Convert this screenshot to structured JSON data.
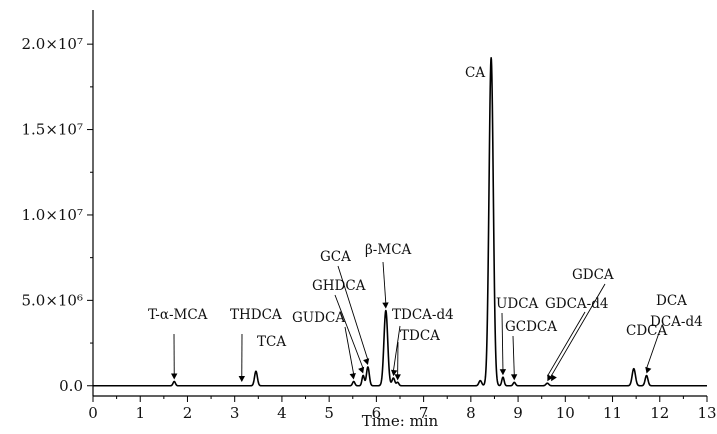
{
  "chart_data": {
    "type": "line",
    "title": "",
    "xlabel": "Time: min",
    "ylabel": "",
    "xlim": [
      0,
      13
    ],
    "ylim": [
      -0.6,
      22
    ],
    "x_ticks": [
      0,
      1,
      2,
      3,
      4,
      5,
      6,
      7,
      8,
      9,
      10,
      11,
      12,
      13
    ],
    "y_ticks": [
      {
        "value": 0,
        "label": "0.0"
      },
      {
        "value": 5,
        "label": "5.0×10⁶"
      },
      {
        "value": 10,
        "label": "1.0×10⁷"
      },
      {
        "value": 15,
        "label": "1.5×10⁷"
      },
      {
        "value": 20,
        "label": "2.0×10⁷"
      }
    ],
    "peaks": [
      {
        "t": 1.72,
        "h": 0.25,
        "w": 0.025
      },
      {
        "t": 3.45,
        "h": 0.85,
        "w": 0.03
      },
      {
        "t": 5.52,
        "h": 0.25,
        "w": 0.025
      },
      {
        "t": 5.72,
        "h": 0.6,
        "w": 0.025
      },
      {
        "t": 5.82,
        "h": 1.1,
        "w": 0.03
      },
      {
        "t": 6.2,
        "h": 4.4,
        "w": 0.04
      },
      {
        "t": 6.36,
        "h": 0.45,
        "w": 0.03
      },
      {
        "t": 6.45,
        "h": 0.2,
        "w": 0.025
      },
      {
        "t": 8.2,
        "h": 0.3,
        "w": 0.03
      },
      {
        "t": 8.43,
        "h": 19.2,
        "w": 0.045
      },
      {
        "t": 8.68,
        "h": 0.5,
        "w": 0.025
      },
      {
        "t": 8.92,
        "h": 0.2,
        "w": 0.025
      },
      {
        "t": 9.62,
        "h": 0.15,
        "w": 0.03
      },
      {
        "t": 11.45,
        "h": 1.0,
        "w": 0.035
      },
      {
        "t": 11.72,
        "h": 0.6,
        "w": 0.03
      }
    ],
    "annotations": [
      {
        "label": "T-α-MCA",
        "x": 1.72,
        "y": 0.25
      },
      {
        "label": "THDCA",
        "x": 3.15,
        "y": 0.1
      },
      {
        "label": "TCA",
        "x": 3.45,
        "y": 0.85
      },
      {
        "label": "GUDCA",
        "x": 5.52,
        "y": 0.25
      },
      {
        "label": "GHDCA",
        "x": 5.72,
        "y": 0.6
      },
      {
        "label": "GCA",
        "x": 5.82,
        "y": 1.1
      },
      {
        "label": "β-MCA",
        "x": 6.2,
        "y": 4.4
      },
      {
        "label": "TDCA-d4",
        "x": 6.36,
        "y": 0.45
      },
      {
        "label": "TDCA",
        "x": 6.45,
        "y": 0.2
      },
      {
        "label": "CA",
        "x": 8.43,
        "y": 19.2
      },
      {
        "label": "UDCA",
        "x": 8.68,
        "y": 0.5
      },
      {
        "label": "GCDCA",
        "x": 8.92,
        "y": 0.2
      },
      {
        "label": "GDCA-d4",
        "x": 9.62,
        "y": 0.15
      },
      {
        "label": "GDCA",
        "x": 9.7,
        "y": 0.15
      },
      {
        "label": "CDCA",
        "x": 11.45,
        "y": 1.0
      },
      {
        "label": "DCA-d4",
        "x": 11.72,
        "y": 0.6
      },
      {
        "label": "DCA",
        "x": 11.65,
        "y": 0.6
      }
    ]
  }
}
